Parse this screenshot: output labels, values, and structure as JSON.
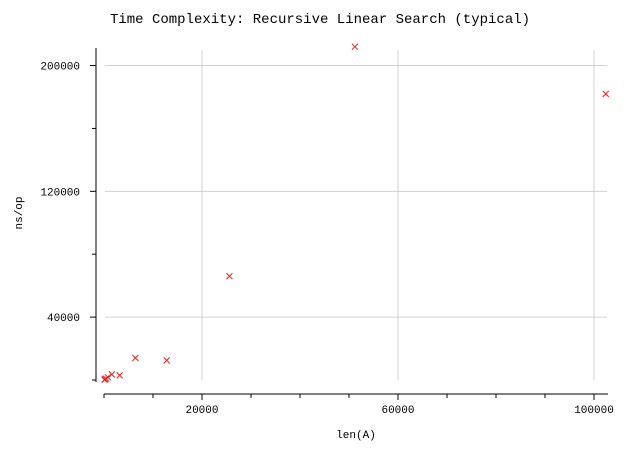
{
  "chart_data": {
    "type": "scatter",
    "title": "Time Complexity: Recursive Linear Search (typical)",
    "xlabel": "len(A)",
    "ylabel": "ns/op",
    "xlim": [
      0,
      103000
    ],
    "ylim": [
      0,
      210000
    ],
    "xticks": [
      20000,
      60000,
      100000
    ],
    "yticks": [
      40000,
      120000,
      200000
    ],
    "grid": true,
    "marker": "x",
    "color": "#e8221f",
    "series": [
      {
        "x": [
          100,
          200,
          400,
          800,
          1600,
          3200,
          6400,
          12800,
          25600,
          51200,
          102400
        ],
        "y": [
          200,
          450,
          850,
          1700,
          3600,
          3000,
          14000,
          12500,
          66000,
          212000,
          182000
        ]
      }
    ]
  }
}
